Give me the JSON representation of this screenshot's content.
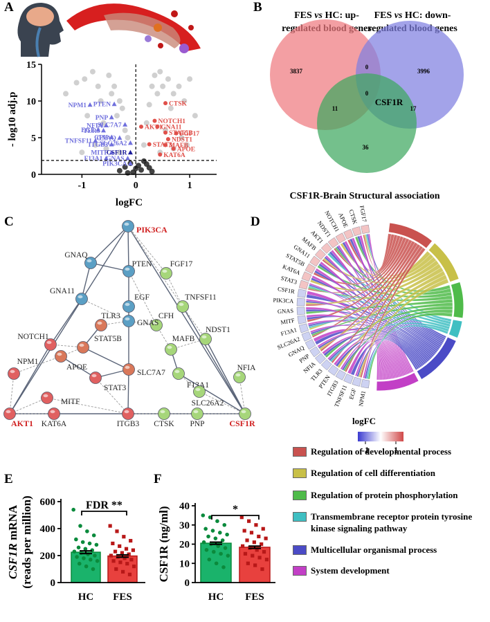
{
  "panel_labels": [
    "A",
    "B",
    "C",
    "D",
    "E",
    "F"
  ],
  "chart_data": [
    {
      "type": "scatter",
      "xlabel": "logFC",
      "ylabel": "- log10 adj.p",
      "xlim": [
        -1.75,
        1.5
      ],
      "ylim": [
        0,
        15
      ],
      "xticks": [
        -1,
        0,
        1
      ],
      "yticks": [
        0,
        5,
        10,
        15
      ],
      "vline": 0,
      "hline": 1.9,
      "series": [
        {
          "color": "#c8c8c8",
          "x": [
            -1.3,
            -1.1,
            -0.95,
            -0.9,
            -0.8,
            -0.7,
            -0.65,
            -0.6,
            -0.5,
            -0.45,
            -0.4,
            -0.35,
            -0.3,
            -0.25,
            -0.2,
            -0.15,
            -1.0,
            -0.75,
            -0.55,
            -0.3,
            0.15,
            0.2,
            0.3,
            0.35,
            0.4,
            0.45,
            0.5,
            0.6,
            0.65,
            0.7,
            0.8,
            0.9,
            1.0,
            1.1,
            0.25,
            0.55,
            0.85,
            0.45,
            0.7,
            0.95
          ],
          "values": [
            11,
            12.5,
            13,
            8,
            14,
            12,
            10,
            7,
            13.5,
            11,
            12,
            8,
            10,
            9,
            6,
            5,
            3,
            4,
            3.5,
            3,
            4,
            7,
            12,
            13.5,
            11,
            14,
            12,
            13,
            9,
            11,
            12,
            10,
            13,
            8,
            9.5,
            6,
            5,
            3,
            3.5,
            4
          ]
        },
        {
          "color": "#222222",
          "x": [
            -0.3,
            -0.2,
            -0.1,
            -0.05,
            0,
            0.05,
            0.1,
            0.2,
            0.3,
            -0.15,
            0.15,
            0.25
          ],
          "values": [
            0.5,
            1,
            1.5,
            0.3,
            0.8,
            1.2,
            0.6,
            1.4,
            0.4,
            0.2,
            1.8,
            0.9
          ]
        },
        {
          "color": "#7070dd",
          "labels": [
            "NPM1",
            "PTEN",
            "PNP",
            "NFIA",
            "TLR3",
            "SLC7A7",
            "EGF",
            "GNAQ",
            "CFH",
            "TNFSF11",
            "ITGB3",
            "SLC26A2",
            "MITF",
            "F13A1",
            "GNAS",
            "PIK3CA"
          ],
          "x": [
            -0.85,
            -0.4,
            -0.45,
            -0.55,
            -0.6,
            -0.2,
            -0.7,
            -0.3,
            -0.45,
            -0.75,
            -0.45,
            -0.1,
            -0.45,
            -0.55,
            -0.15,
            -0.1
          ],
          "values": [
            9.5,
            9.6,
            7.8,
            6.7,
            6.0,
            6.8,
            6.1,
            5.0,
            5.1,
            4.6,
            4.1,
            4.3,
            3.0,
            2.2,
            2.2,
            1.5
          ]
        },
        {
          "color": "#1a1a9a",
          "labels": [
            "CSF1R"
          ],
          "x": [
            -0.1
          ],
          "values": [
            3.0
          ]
        },
        {
          "color": "#e0504a",
          "labels": [
            "CTSK",
            "NOTCH1",
            "AKT1",
            "GNA11",
            "STAT5B",
            "FGF17",
            "NDST1",
            "STAT3",
            "MAFB",
            "APOE",
            "KAT6A"
          ],
          "x": [
            0.55,
            0.35,
            0.1,
            0.4,
            0.55,
            0.75,
            0.6,
            0.25,
            0.55,
            0.7,
            0.45
          ],
          "values": [
            9.7,
            7.3,
            6.5,
            6.5,
            5.7,
            5.6,
            4.8,
            4.1,
            4.0,
            3.5,
            2.7
          ]
        }
      ]
    },
    {
      "type": "bar",
      "ylabel": {
        "gene": "CSF1R",
        "text": "mRNA",
        "unit": "(reads per million)"
      },
      "annotation": "FDR **",
      "categories": [
        "HC",
        "FES"
      ],
      "values": [
        225,
        197
      ],
      "errors": [
        10,
        9
      ],
      "colors": [
        "#1ab36b",
        "#e8413e"
      ],
      "point_colors": [
        "#0b8a3c",
        "#b81818"
      ],
      "ylim": [
        0,
        600
      ],
      "yticks": [
        0,
        200,
        400,
        600
      ],
      "points": [
        [
          540,
          420,
          380,
          350,
          320,
          300,
          290,
          280,
          260,
          250,
          240,
          230,
          220,
          210,
          200,
          190,
          180,
          170,
          160,
          140,
          120,
          100
        ],
        [
          420,
          380,
          340,
          310,
          290,
          270,
          250,
          240,
          230,
          220,
          210,
          200,
          190,
          180,
          170,
          160,
          150,
          140,
          120,
          100,
          80,
          60
        ]
      ]
    },
    {
      "type": "bar",
      "ylabel": "CSF1R (ng/ml)",
      "annotation": "*",
      "categories": [
        "HC",
        "FES"
      ],
      "values": [
        20.5,
        18.4
      ],
      "errors": [
        0.6,
        0.6
      ],
      "colors": [
        "#1ab36b",
        "#e8413e"
      ],
      "point_colors": [
        "#0b8a3c",
        "#b81818"
      ],
      "ylim": [
        0,
        40
      ],
      "yticks": [
        0,
        10,
        20,
        30,
        40
      ],
      "points": [
        [
          35,
          34,
          32,
          30,
          28,
          27,
          26,
          25,
          24,
          23,
          22,
          21,
          20,
          19,
          18,
          17,
          16,
          15,
          14,
          12,
          10,
          8
        ],
        [
          34,
          32,
          30,
          28,
          27,
          26,
          24,
          23,
          22,
          21,
          20,
          19,
          18,
          17,
          16,
          15,
          14,
          13,
          12,
          10,
          9,
          7
        ]
      ]
    }
  ],
  "venn": {
    "left": {
      "pre": "FES",
      "vs": "vs",
      "post": "HC: up-",
      "line2": "regulated blood genes"
    },
    "right": {
      "pre": "FES",
      "vs": "vs",
      "post": "HC: down-",
      "line2": "regulated blood genes"
    },
    "bottom": "CSF1R-Brain Structural association",
    "colors": [
      "#ee7a80",
      "#7f7fe0",
      "#3fa860"
    ],
    "counts": [
      3837,
      0,
      3996,
      0,
      11,
      17,
      36
    ],
    "center_label": "CSF1R"
  },
  "network": {
    "nodes": [
      {
        "label": "PIK3CA",
        "color": "#5b9fc4",
        "highlight": true
      },
      {
        "label": "GNAQ",
        "color": "#5b9fc4"
      },
      {
        "label": "PTEN",
        "color": "#5b9fc4"
      },
      {
        "label": "FGF17",
        "color": "#a6d67a"
      },
      {
        "label": "GNA11",
        "color": "#5b9fc4"
      },
      {
        "label": "EGF",
        "color": "#5b9fc4"
      },
      {
        "label": "TNFSF11",
        "color": "#a6d67a"
      },
      {
        "label": "CFH",
        "color": "#a6d67a"
      },
      {
        "label": "TLR3",
        "color": "#d9785a"
      },
      {
        "label": "NOTCH1",
        "color": "#e06060"
      },
      {
        "label": "GNAS",
        "color": "#5b9fc4"
      },
      {
        "label": "STAT5B",
        "color": "#d9785a"
      },
      {
        "label": "MAFB",
        "color": "#a6d67a"
      },
      {
        "label": "NDST1",
        "color": "#a6d67a"
      },
      {
        "label": "APOE",
        "color": "#d9785a"
      },
      {
        "label": "NPM1",
        "color": "#e06060"
      },
      {
        "label": "SLC7A7",
        "color": "#d9785a"
      },
      {
        "label": "F13A1",
        "color": "#a6d67a"
      },
      {
        "label": "NFIA",
        "color": "#a6d67a"
      },
      {
        "label": "MITF",
        "color": "#e06060"
      },
      {
        "label": "STAT3",
        "color": "#e06060"
      },
      {
        "label": "SLC26A2",
        "color": "#a6d67a"
      },
      {
        "label": "AKT1",
        "color": "#e06060",
        "highlight": true
      },
      {
        "label": "KAT6A",
        "color": "#e06060"
      },
      {
        "label": "ITGB3",
        "color": "#e06060"
      },
      {
        "label": "CTSK",
        "color": "#a6d67a"
      },
      {
        "label": "PNP",
        "color": "#a6d67a"
      },
      {
        "label": "CSF1R",
        "color": "#a6d67a",
        "highlight": true
      }
    ]
  },
  "chord": {
    "genes": [
      {
        "label": "FGF17",
        "color": "#f3c4c4"
      },
      {
        "label": "CTSK",
        "color": "#f3c4c4"
      },
      {
        "label": "APOE",
        "color": "#f3c4c4"
      },
      {
        "label": "NOTCH1",
        "color": "#f3c4c4"
      },
      {
        "label": "NDST1",
        "color": "#f3c4c4"
      },
      {
        "label": "AKT1",
        "color": "#f3c4c4"
      },
      {
        "label": "MAFB",
        "color": "#f3c4c4"
      },
      {
        "label": "GNA11",
        "color": "#f3c4c4"
      },
      {
        "label": "STAT5B",
        "color": "#f3c4c4"
      },
      {
        "label": "KAT6A",
        "color": "#f3c4c4"
      },
      {
        "label": "STAT3",
        "color": "#f3c4c4"
      },
      {
        "label": "CSF1R",
        "color": "#cdd2f2"
      },
      {
        "label": "PIK3CA",
        "color": "#cdd2f2"
      },
      {
        "label": "GNAS",
        "color": "#cdd2f2"
      },
      {
        "label": "MITF",
        "color": "#cdd2f2"
      },
      {
        "label": "F13A1",
        "color": "#cdd2f2"
      },
      {
        "label": "SLC26A2",
        "color": "#cdd2f2"
      },
      {
        "label": "GNAQ",
        "color": "#cdd2f2"
      },
      {
        "label": "PNP",
        "color": "#cdd2f2"
      },
      {
        "label": "NFIA",
        "color": "#cdd2f2"
      },
      {
        "label": "TLR3",
        "color": "#cdd2f2"
      },
      {
        "label": "PTEN",
        "color": "#cdd2f2"
      },
      {
        "label": "ITGB3",
        "color": "#cdd2f2"
      },
      {
        "label": "TNFSF11",
        "color": "#cdd2f2"
      },
      {
        "label": "EGF",
        "color": "#cdd2f2"
      },
      {
        "label": "NPM1",
        "color": "#cdd2f2"
      }
    ],
    "pathways": [
      {
        "name": "Regulation of developmental process",
        "color": "#c9524f"
      },
      {
        "name": "Regulation of cell differentiation",
        "color": "#c8c048"
      },
      {
        "name": "Regulation of protein phosphorylation",
        "color": "#4fbb4a"
      },
      {
        "name": "Transmembrane receptor protein tyrosine  kinase signaling pathway",
        "color": "#3fbfc2"
      },
      {
        "name": "Multicellular organismal process",
        "color": "#4b4bc6"
      },
      {
        "name": "System development",
        "color": "#c23fc6"
      }
    ],
    "colorbar": {
      "label": "logFC",
      "lim": [
        -1.5,
        1.5
      ],
      "ticks": [
        -1,
        1
      ],
      "colors": [
        "#3a3ad0",
        "#ffffff",
        "#d04848"
      ]
    }
  }
}
